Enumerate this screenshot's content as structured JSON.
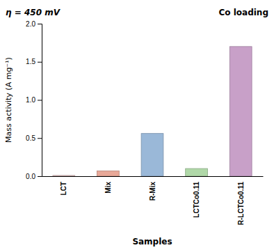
{
  "chart_data": {
    "type": "bar",
    "annotations": [
      "η = 450 mV",
      "Co loading"
    ],
    "xlabel": "Samples",
    "ylabel": "Mass activity (A mg⁻¹)",
    "categories": [
      "LCT",
      "Mix",
      "R-Mix",
      "LCTCo0.11",
      "R-LCTCo0.11"
    ],
    "values": [
      0.01,
      0.07,
      0.56,
      0.1,
      1.7
    ],
    "colors": [
      "#e8c8c8",
      "#e8a898",
      "#9ab8d8",
      "#b0d8a8",
      "#c8a0c8"
    ],
    "ylim": [
      0,
      2.0
    ],
    "yticks": [
      {
        "value": 0.0,
        "label": "0.0"
      },
      0.5,
      {
        "value": 1.0,
        "label": "1.0"
      },
      1.5,
      {
        "value": 2.0,
        "label": "2.0"
      }
    ],
    "grid": false
  }
}
